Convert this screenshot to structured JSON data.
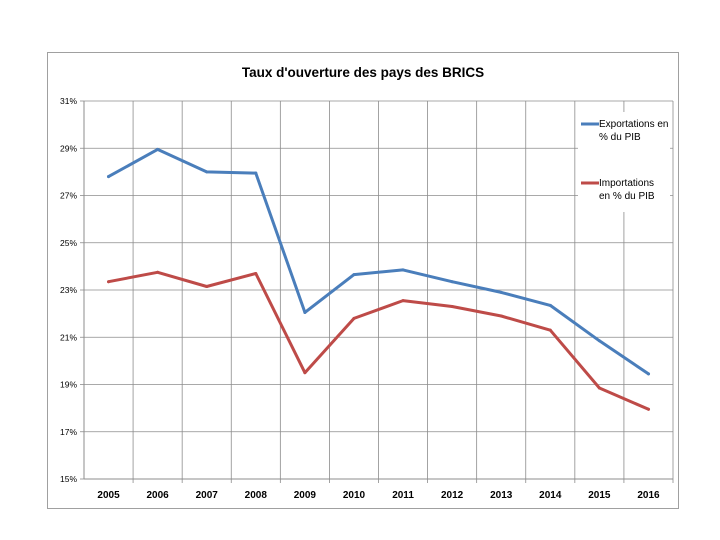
{
  "chart_data": {
    "type": "line",
    "title": "Taux d'ouverture des pays des BRICS",
    "xlabel": "",
    "ylabel": "",
    "categories": [
      "2005",
      "2006",
      "2007",
      "2008",
      "2009",
      "2010",
      "2011",
      "2012",
      "2013",
      "2014",
      "2015",
      "2016"
    ],
    "ylim": [
      15,
      31
    ],
    "y_ticks": [
      15,
      17,
      19,
      21,
      23,
      25,
      27,
      29,
      31
    ],
    "y_tick_labels": [
      "15%",
      "17%",
      "19%",
      "21%",
      "23%",
      "25%",
      "27%",
      "29%",
      "31%"
    ],
    "grid": true,
    "legend_position": "right",
    "series": [
      {
        "name": "Exportations en % du PIB",
        "legend_lines": [
          "Exportations en",
          "% du PIB"
        ],
        "color": "#4a7ebb",
        "values": [
          27.8,
          28.95,
          28.0,
          27.95,
          22.05,
          23.65,
          23.85,
          23.35,
          22.9,
          22.35,
          20.85,
          19.45
        ]
      },
      {
        "name": "Importations en % du PIB",
        "legend_lines": [
          "Importations",
          "en % du PIB"
        ],
        "color": "#be4b48",
        "values": [
          23.35,
          23.75,
          23.15,
          23.7,
          19.5,
          21.8,
          22.55,
          22.3,
          21.9,
          21.3,
          18.85,
          17.95
        ]
      }
    ]
  }
}
